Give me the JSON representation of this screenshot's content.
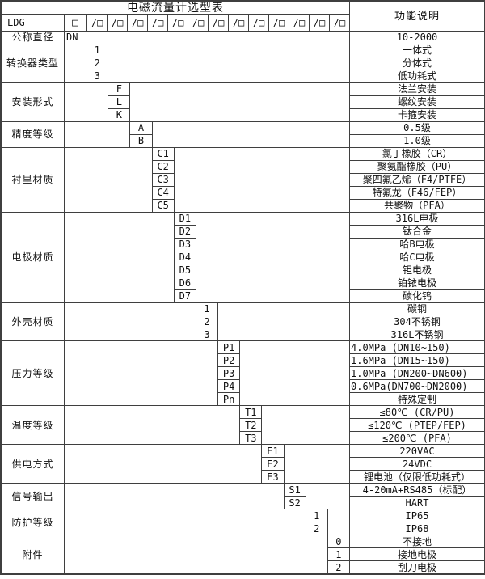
{
  "title": "电磁流量计选型表",
  "function_header": "功能说明",
  "model": {
    "prefix": "LDG",
    "base_box": "□",
    "boxes": [
      "/□",
      "/□",
      "/□",
      "/□",
      "/□",
      "/□",
      "/□",
      "/□",
      "/□",
      "/□",
      "/□",
      "/□",
      "/□"
    ]
  },
  "sections": [
    {
      "label": "公称直径",
      "rows": [
        {
          "code": "DN",
          "desc": "10-2000"
        }
      ]
    },
    {
      "label": "转换器类型",
      "rows": [
        {
          "code": "1",
          "desc": "一体式"
        },
        {
          "code": "2",
          "desc": "分体式"
        },
        {
          "code": "3",
          "desc": "低功耗式"
        }
      ]
    },
    {
      "label": "安装形式",
      "rows": [
        {
          "code": "F",
          "desc": "法兰安装"
        },
        {
          "code": "L",
          "desc": "螺纹安装"
        },
        {
          "code": "K",
          "desc": "卡箍安装"
        }
      ]
    },
    {
      "label": "精度等级",
      "rows": [
        {
          "code": "A",
          "desc": "0.5级"
        },
        {
          "code": "B",
          "desc": "1.0级"
        }
      ]
    },
    {
      "label": "衬里材质",
      "rows": [
        {
          "code": "C1",
          "desc": "氯丁橡胶（CR）"
        },
        {
          "code": "C2",
          "desc": "聚氨酯橡胶（PU）"
        },
        {
          "code": "C3",
          "desc": "聚四氟乙烯（F4/PTFE）"
        },
        {
          "code": "C4",
          "desc": "特氟龙（F46/FEP）"
        },
        {
          "code": "C5",
          "desc": "共聚物（PFA）"
        }
      ]
    },
    {
      "label": "电极材质",
      "rows": [
        {
          "code": "D1",
          "desc": "316L电极"
        },
        {
          "code": "D2",
          "desc": "钛合金"
        },
        {
          "code": "D3",
          "desc": "哈B电极"
        },
        {
          "code": "D4",
          "desc": "哈C电极"
        },
        {
          "code": "D5",
          "desc": "钽电极"
        },
        {
          "code": "D6",
          "desc": "铂铱电极"
        },
        {
          "code": "D7",
          "desc": "碳化钨"
        }
      ]
    },
    {
      "label": "外壳材质",
      "rows": [
        {
          "code": "1",
          "desc": "碳钢"
        },
        {
          "code": "2",
          "desc": "304不锈钢"
        },
        {
          "code": "3",
          "desc": "316L不锈钢"
        }
      ]
    },
    {
      "label": "压力等级",
      "rows": [
        {
          "code": "P1",
          "desc": "4.0MPa (DN10~150)"
        },
        {
          "code": "P2",
          "desc": "1.6MPa (DN15~150)"
        },
        {
          "code": "P3",
          "desc": "1.0MPa (DN200~DN600)"
        },
        {
          "code": "P4",
          "desc": "0.6MPa(DN700~DN2000)"
        },
        {
          "code": "Pn",
          "desc": "特殊定制"
        }
      ]
    },
    {
      "label": "温度等级",
      "rows": [
        {
          "code": "T1",
          "desc": "≤80℃ (CR/PU)"
        },
        {
          "code": "T2",
          "desc": "≤120℃ (PTEP/FEP)"
        },
        {
          "code": "T3",
          "desc": "≤200℃ (PFA)"
        }
      ]
    },
    {
      "label": "供电方式",
      "rows": [
        {
          "code": "E1",
          "desc": "220VAC"
        },
        {
          "code": "E2",
          "desc": "24VDC"
        },
        {
          "code": "E3",
          "desc": "锂电池（仅限低功耗式）"
        }
      ]
    },
    {
      "label": "信号输出",
      "rows": [
        {
          "code": "S1",
          "desc": "4-20mA+RS485（标配）"
        },
        {
          "code": "S2",
          "desc": "HART"
        }
      ]
    },
    {
      "label": "防护等级",
      "rows": [
        {
          "code": "1",
          "desc": "IP65"
        },
        {
          "code": "2",
          "desc": "IP68"
        }
      ]
    },
    {
      "label": "附件",
      "rows": [
        {
          "code": "0",
          "desc": "不接地"
        },
        {
          "code": "1",
          "desc": "接地电极"
        },
        {
          "code": "2",
          "desc": "刮刀电极"
        }
      ]
    }
  ],
  "colors": {
    "border": "#3f3f3f",
    "text": "#111111",
    "background": "#ffffff"
  }
}
